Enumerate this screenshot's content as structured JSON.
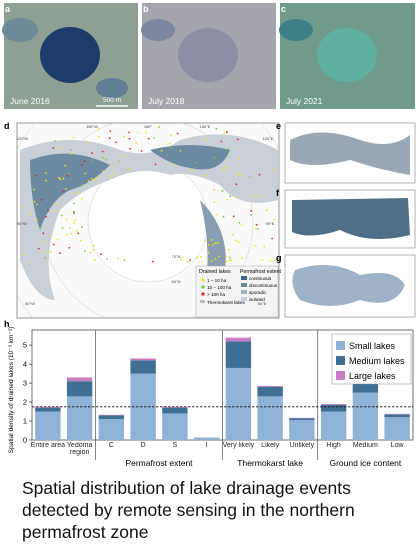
{
  "panel_labels": [
    "a",
    "b",
    "c",
    "d",
    "e",
    "f",
    "g",
    "h"
  ],
  "images": [
    {
      "date": "June 2016",
      "scale": "500 m"
    },
    {
      "date": "July 2018"
    },
    {
      "date": "July 2021"
    }
  ],
  "map": {
    "graticule_labels": [
      "180°",
      "150°W",
      "150°E",
      "120°W",
      "120°E",
      "90°W",
      "90°E",
      "60°W",
      "60°E",
      "70°N",
      "60°N"
    ],
    "legend_lakes_title": "Drained lakes",
    "legend_lakes": [
      "1 – 10 ha",
      "10 – 100 ha",
      "> 100 ha"
    ],
    "legend_thermokarst": "Thermokarst lakes",
    "legend_permafrost_title": "Permafrost extent",
    "legend_permafrost": [
      "continuous",
      "discontinuous",
      "sporadic",
      "isolated"
    ]
  },
  "chart_data": {
    "type": "stacked_bar",
    "y_label": "Spatial density of drained lakes (10⁻³ km⁻²)",
    "categories": [
      "Entire area",
      "Yedoma region",
      "C",
      "D",
      "S",
      "I",
      "Very likely",
      "Likely",
      "Unlikely",
      "High",
      "Medium",
      "Low"
    ],
    "group_labels": [
      "Permafrost extent",
      "Thermokarst lake",
      "Ground ice content"
    ],
    "series": [
      {
        "name": "Small lakes",
        "color": "#8fb3d6",
        "values": [
          1.5,
          2.3,
          1.1,
          3.5,
          1.4,
          0.1,
          3.8,
          2.3,
          1.05,
          1.5,
          2.5,
          1.2
        ]
      },
      {
        "name": "Medium lakes",
        "color": "#3f6f94",
        "values": [
          0.2,
          0.8,
          0.2,
          0.7,
          0.3,
          0.02,
          1.4,
          0.5,
          0.1,
          0.35,
          0.6,
          0.15
        ]
      },
      {
        "name": "Large lakes",
        "color": "#c97cc4",
        "values": [
          0.05,
          0.2,
          0.03,
          0.1,
          0.05,
          0,
          0.2,
          0.05,
          0.02,
          0.05,
          0.05,
          0.03
        ]
      }
    ],
    "reference_line": 1.75,
    "ylim": [
      0,
      5.8
    ],
    "yticks": [
      0,
      1,
      2,
      3,
      4,
      5
    ],
    "legend": "upper right"
  },
  "caption": "Spatial distribution of lake drainage events detected by remote sensing in the northern permafrost zone"
}
